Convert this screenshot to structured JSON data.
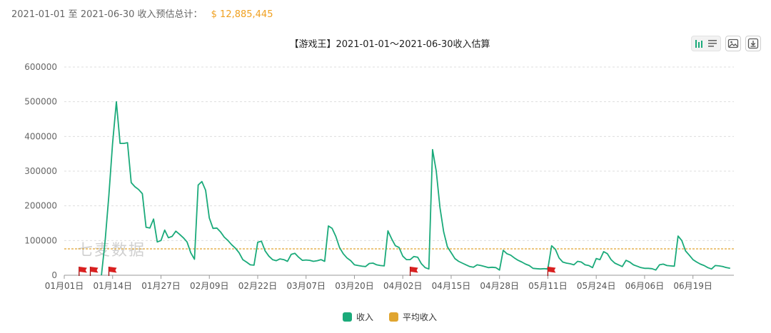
{
  "summary": {
    "label": "2021-01-01 至 2021-06-30 收入预估总计：",
    "total": "$ 12,885,445"
  },
  "toolbar": {
    "icons": [
      "bar-chart-icon",
      "list-icon",
      "image-icon",
      "download-icon"
    ]
  },
  "watermark": "七麦数据",
  "colors": {
    "revenue": "#1aaa7a",
    "average": "#e0a530",
    "flag": "#d92020"
  },
  "chart_data": {
    "type": "line",
    "title": "【游戏王】2021-01-01～2021-06-30收入估算",
    "xlabel": "",
    "ylabel": "",
    "ylim": [
      0,
      600000
    ],
    "yticks": [
      0,
      100000,
      200000,
      300000,
      400000,
      500000,
      600000
    ],
    "ytick_labels": [
      "0",
      "100000",
      "200000",
      "300000",
      "400000",
      "500000",
      "600000"
    ],
    "xlim": [
      "2021-01-01",
      "2021-06-30"
    ],
    "xticks": [
      "2021-01-01",
      "2021-01-14",
      "2021-01-27",
      "2021-02-09",
      "2021-02-22",
      "2021-03-07",
      "2021-03-20",
      "2021-04-02",
      "2021-04-15",
      "2021-04-28",
      "2021-05-11",
      "2021-05-24",
      "2021-06-06",
      "2021-06-19"
    ],
    "xtick_labels": [
      "01月01日",
      "01月14日",
      "01月27日",
      "02月09日",
      "02月22日",
      "03月07日",
      "03月20日",
      "04月02日",
      "04月15日",
      "04月28日",
      "05月11日",
      "05月24日",
      "06月06日",
      "06月19日"
    ],
    "grid": true,
    "legend_position": "bottom-center",
    "average": {
      "name": "平均收入",
      "value": 76000
    },
    "flags": [
      "2021-01-05",
      "2021-01-08",
      "2021-01-13",
      "2021-04-04",
      "2021-05-11"
    ],
    "series": [
      {
        "name": "收入",
        "points": [
          [
            "2021-01-11",
            0
          ],
          [
            "2021-01-12",
            100000
          ],
          [
            "2021-01-13",
            230000
          ],
          [
            "2021-01-14",
            380000
          ],
          [
            "2021-01-15",
            500000
          ],
          [
            "2021-01-16",
            380000
          ],
          [
            "2021-01-17",
            380000
          ],
          [
            "2021-01-18",
            382000
          ],
          [
            "2021-01-19",
            267000
          ],
          [
            "2021-01-20",
            255000
          ],
          [
            "2021-01-21",
            247000
          ],
          [
            "2021-01-22",
            235000
          ],
          [
            "2021-01-23",
            138000
          ],
          [
            "2021-01-24",
            136000
          ],
          [
            "2021-01-25",
            162000
          ],
          [
            "2021-01-26",
            96000
          ],
          [
            "2021-01-27",
            100000
          ],
          [
            "2021-01-28",
            130000
          ],
          [
            "2021-01-29",
            108000
          ],
          [
            "2021-01-30",
            112000
          ],
          [
            "2021-01-31",
            127000
          ],
          [
            "2021-02-01",
            118000
          ],
          [
            "2021-02-02",
            108000
          ],
          [
            "2021-02-03",
            96000
          ],
          [
            "2021-02-04",
            65000
          ],
          [
            "2021-02-05",
            46000
          ],
          [
            "2021-02-06",
            260000
          ],
          [
            "2021-02-07",
            270000
          ],
          [
            "2021-02-08",
            245000
          ],
          [
            "2021-02-09",
            165000
          ],
          [
            "2021-02-10",
            135000
          ],
          [
            "2021-02-11",
            136000
          ],
          [
            "2021-02-12",
            125000
          ],
          [
            "2021-02-13",
            110000
          ],
          [
            "2021-02-14",
            100000
          ],
          [
            "2021-02-15",
            88000
          ],
          [
            "2021-02-16",
            78000
          ],
          [
            "2021-02-17",
            65000
          ],
          [
            "2021-02-18",
            45000
          ],
          [
            "2021-02-19",
            38000
          ],
          [
            "2021-02-20",
            30000
          ],
          [
            "2021-02-21",
            29000
          ],
          [
            "2021-02-22",
            95000
          ],
          [
            "2021-02-23",
            98000
          ],
          [
            "2021-02-24",
            70000
          ],
          [
            "2021-02-25",
            55000
          ],
          [
            "2021-02-26",
            45000
          ],
          [
            "2021-02-27",
            42000
          ],
          [
            "2021-02-28",
            47000
          ],
          [
            "2021-03-01",
            45000
          ],
          [
            "2021-03-02",
            40000
          ],
          [
            "2021-03-03",
            60000
          ],
          [
            "2021-03-04",
            63000
          ],
          [
            "2021-03-05",
            52000
          ],
          [
            "2021-03-06",
            43000
          ],
          [
            "2021-03-07",
            44000
          ],
          [
            "2021-03-08",
            43000
          ],
          [
            "2021-03-09",
            40000
          ],
          [
            "2021-03-10",
            42000
          ],
          [
            "2021-03-11",
            45000
          ],
          [
            "2021-03-12",
            40000
          ],
          [
            "2021-03-13",
            142000
          ],
          [
            "2021-03-14",
            135000
          ],
          [
            "2021-03-15",
            112000
          ],
          [
            "2021-03-16",
            80000
          ],
          [
            "2021-03-17",
            62000
          ],
          [
            "2021-03-18",
            50000
          ],
          [
            "2021-03-19",
            42000
          ],
          [
            "2021-03-20",
            30000
          ],
          [
            "2021-03-21",
            28000
          ],
          [
            "2021-03-22",
            26000
          ],
          [
            "2021-03-23",
            25000
          ],
          [
            "2021-03-24",
            34000
          ],
          [
            "2021-03-25",
            35000
          ],
          [
            "2021-03-26",
            30000
          ],
          [
            "2021-03-27",
            28000
          ],
          [
            "2021-03-28",
            27000
          ],
          [
            "2021-03-29",
            128000
          ],
          [
            "2021-03-30",
            105000
          ],
          [
            "2021-03-31",
            85000
          ],
          [
            "2021-04-01",
            80000
          ],
          [
            "2021-04-02",
            55000
          ],
          [
            "2021-04-03",
            45000
          ],
          [
            "2021-04-04",
            45000
          ],
          [
            "2021-04-05",
            54000
          ],
          [
            "2021-04-06",
            52000
          ],
          [
            "2021-04-07",
            33000
          ],
          [
            "2021-04-08",
            22000
          ],
          [
            "2021-04-09",
            18000
          ],
          [
            "2021-04-10",
            362000
          ],
          [
            "2021-04-11",
            300000
          ],
          [
            "2021-04-12",
            195000
          ],
          [
            "2021-04-13",
            125000
          ],
          [
            "2021-04-14",
            82000
          ],
          [
            "2021-04-15",
            65000
          ],
          [
            "2021-04-16",
            48000
          ],
          [
            "2021-04-17",
            40000
          ],
          [
            "2021-04-18",
            35000
          ],
          [
            "2021-04-19",
            30000
          ],
          [
            "2021-04-20",
            25000
          ],
          [
            "2021-04-21",
            23000
          ],
          [
            "2021-04-22",
            30000
          ],
          [
            "2021-04-23",
            28000
          ],
          [
            "2021-04-24",
            25000
          ],
          [
            "2021-04-25",
            22000
          ],
          [
            "2021-04-26",
            23000
          ],
          [
            "2021-04-27",
            22000
          ],
          [
            "2021-04-28",
            15000
          ],
          [
            "2021-04-29",
            72000
          ],
          [
            "2021-04-30",
            62000
          ],
          [
            "2021-05-01",
            58000
          ],
          [
            "2021-05-02",
            50000
          ],
          [
            "2021-05-03",
            43000
          ],
          [
            "2021-05-04",
            38000
          ],
          [
            "2021-05-05",
            32000
          ],
          [
            "2021-05-06",
            28000
          ],
          [
            "2021-05-07",
            20000
          ],
          [
            "2021-05-08",
            19000
          ],
          [
            "2021-05-09",
            18000
          ],
          [
            "2021-05-10",
            19000
          ],
          [
            "2021-05-11",
            18000
          ],
          [
            "2021-05-12",
            85000
          ],
          [
            "2021-05-13",
            75000
          ],
          [
            "2021-05-14",
            50000
          ],
          [
            "2021-05-15",
            38000
          ],
          [
            "2021-05-16",
            35000
          ],
          [
            "2021-05-17",
            33000
          ],
          [
            "2021-05-18",
            30000
          ],
          [
            "2021-05-19",
            40000
          ],
          [
            "2021-05-20",
            38000
          ],
          [
            "2021-05-21",
            30000
          ],
          [
            "2021-05-22",
            28000
          ],
          [
            "2021-05-23",
            22000
          ],
          [
            "2021-05-24",
            48000
          ],
          [
            "2021-05-25",
            45000
          ],
          [
            "2021-05-26",
            68000
          ],
          [
            "2021-05-27",
            62000
          ],
          [
            "2021-05-28",
            45000
          ],
          [
            "2021-05-29",
            35000
          ],
          [
            "2021-05-30",
            30000
          ],
          [
            "2021-05-31",
            25000
          ],
          [
            "2021-06-01",
            43000
          ],
          [
            "2021-06-02",
            38000
          ],
          [
            "2021-06-03",
            30000
          ],
          [
            "2021-06-04",
            26000
          ],
          [
            "2021-06-05",
            22000
          ],
          [
            "2021-06-06",
            20000
          ],
          [
            "2021-06-07",
            20000
          ],
          [
            "2021-06-08",
            19000
          ],
          [
            "2021-06-09",
            15000
          ],
          [
            "2021-06-10",
            30000
          ],
          [
            "2021-06-11",
            32000
          ],
          [
            "2021-06-12",
            28000
          ],
          [
            "2021-06-13",
            27000
          ],
          [
            "2021-06-14",
            26000
          ],
          [
            "2021-06-15",
            113000
          ],
          [
            "2021-06-16",
            100000
          ],
          [
            "2021-06-17",
            70000
          ],
          [
            "2021-06-18",
            58000
          ],
          [
            "2021-06-19",
            45000
          ],
          [
            "2021-06-20",
            38000
          ],
          [
            "2021-06-21",
            32000
          ],
          [
            "2021-06-22",
            28000
          ],
          [
            "2021-06-23",
            22000
          ],
          [
            "2021-06-24",
            18000
          ],
          [
            "2021-06-25",
            28000
          ],
          [
            "2021-06-26",
            27000
          ],
          [
            "2021-06-27",
            25000
          ],
          [
            "2021-06-28",
            22000
          ],
          [
            "2021-06-29",
            20000
          ]
        ]
      }
    ]
  },
  "legend": {
    "items": [
      {
        "label": "收入",
        "color": "#1aaa7a"
      },
      {
        "label": "平均收入",
        "color": "#e0a530"
      }
    ]
  }
}
